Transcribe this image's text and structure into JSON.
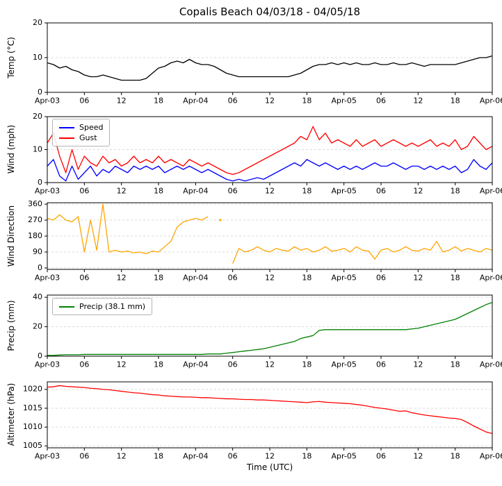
{
  "title": "Copalis Beach 04/03/18 - 04/05/18",
  "xlabel": "Time (UTC)",
  "x_ticks": {
    "hours": [
      0,
      6,
      12,
      18,
      24,
      30,
      36,
      42,
      48,
      54,
      60,
      66,
      72
    ],
    "labels": [
      "Apr-03",
      "06",
      "12",
      "18",
      "Apr-04",
      "06",
      "12",
      "18",
      "Apr-05",
      "06",
      "12",
      "18",
      "Apr-06"
    ]
  },
  "x_range": [
    0,
    72
  ],
  "x_step_hours": 1,
  "grid": {
    "on": true,
    "style": "dashed",
    "color": "#d0d0d0"
  },
  "chart_data": [
    {
      "id": "temperature",
      "type": "line",
      "ylabel": "Temp (°C)",
      "ylim": [
        0,
        20
      ],
      "yticks": [
        0,
        10,
        20
      ],
      "series": [
        {
          "name": "Temp",
          "color": "#000000",
          "values": [
            8.5,
            8,
            7,
            7.5,
            6.5,
            6,
            5,
            4.5,
            4.5,
            5,
            4.5,
            4,
            3.5,
            3.5,
            3.5,
            3.5,
            4,
            5.5,
            7,
            7.5,
            8.5,
            9,
            8.5,
            9.5,
            8.5,
            8,
            8,
            7.5,
            6.5,
            5.5,
            5,
            4.5,
            4.5,
            4.5,
            4.5,
            4.5,
            4.5,
            4.5,
            4.5,
            4.5,
            5,
            5.5,
            6.5,
            7.5,
            8,
            8,
            8.5,
            8,
            8.5,
            8,
            8.5,
            8,
            8,
            8.5,
            8,
            8,
            8.5,
            8,
            8,
            8.5,
            8,
            7.5,
            8,
            8,
            8,
            8,
            8,
            8.5,
            9,
            9.5,
            10,
            10,
            10.5
          ]
        }
      ]
    },
    {
      "id": "wind",
      "type": "line",
      "ylabel": "Wind (mph)",
      "ylim": [
        0,
        20
      ],
      "yticks": [
        0,
        10,
        20
      ],
      "legend": {
        "position": "upper left",
        "entries": [
          "Speed",
          "Gust"
        ]
      },
      "series": [
        {
          "name": "Speed",
          "color": "#0000ff",
          "values": [
            5,
            7,
            2,
            0.5,
            5,
            1,
            3,
            5,
            2,
            4,
            3,
            5,
            4,
            3,
            5,
            4,
            5,
            4,
            5,
            3,
            4,
            5,
            4,
            5,
            4,
            3,
            4,
            3,
            2,
            1,
            0.5,
            1,
            0.5,
            1,
            1.5,
            1,
            2,
            3,
            4,
            5,
            6,
            5,
            7,
            6,
            5,
            6,
            5,
            4,
            5,
            4,
            5,
            4,
            5,
            6,
            5,
            5,
            6,
            5,
            4,
            5,
            5,
            4,
            5,
            4,
            5,
            4,
            5,
            3,
            4,
            7,
            5,
            4,
            6
          ]
        },
        {
          "name": "Gust",
          "color": "#ff0000",
          "values": [
            12,
            15,
            8,
            3,
            10,
            4,
            8,
            6,
            5,
            8,
            6,
            7,
            5,
            6,
            8,
            6,
            7,
            6,
            8,
            6,
            7,
            6,
            5,
            7,
            6,
            5,
            6,
            5,
            4,
            3,
            2.5,
            3,
            4,
            5,
            6,
            7,
            8,
            9,
            10,
            11,
            12,
            14,
            13,
            17,
            13,
            15,
            12,
            13,
            12,
            11,
            13,
            11,
            12,
            13,
            11,
            12,
            13,
            12,
            11,
            12,
            11,
            12,
            13,
            11,
            12,
            11,
            13,
            10,
            11,
            14,
            12,
            10,
            11
          ]
        }
      ]
    },
    {
      "id": "wind-direction",
      "type": "line",
      "ylabel": "Wind Direction",
      "ylim": [
        -8,
        368
      ],
      "yticks": [
        0,
        90,
        180,
        270,
        360
      ],
      "series": [
        {
          "name": "Wind Direction",
          "color": "#ffa500",
          "values": [
            280,
            270,
            300,
            270,
            260,
            290,
            90,
            270,
            100,
            360,
            90,
            100,
            90,
            95,
            85,
            90,
            80,
            95,
            90,
            120,
            150,
            230,
            260,
            270,
            280,
            270,
            290,
            null,
            270,
            null,
            25,
            110,
            90,
            100,
            120,
            100,
            90,
            110,
            100,
            95,
            120,
            100,
            110,
            90,
            100,
            120,
            95,
            100,
            110,
            90,
            120,
            100,
            95,
            50,
            100,
            110,
            90,
            100,
            120,
            100,
            95,
            110,
            100,
            150,
            90,
            100,
            120,
            95,
            110,
            100,
            90,
            110,
            100
          ]
        }
      ]
    },
    {
      "id": "precip",
      "type": "line",
      "ylabel": "Precip (mm)",
      "ylim": [
        0,
        41.5
      ],
      "yticks": [
        0,
        20,
        40
      ],
      "legend": {
        "position": "upper left",
        "entries": [
          "Precip (38.1 mm)"
        ]
      },
      "series": [
        {
          "name": "Precip (38.1 mm)",
          "color": "#008000",
          "values": [
            0.5,
            0.5,
            0.8,
            1,
            1,
            1,
            1.2,
            1.2,
            1.2,
            1.2,
            1.2,
            1.2,
            1.2,
            1.2,
            1.2,
            1.2,
            1.2,
            1.2,
            1.2,
            1.2,
            1.2,
            1.2,
            1.2,
            1.2,
            1.2,
            1.2,
            1.5,
            1.5,
            1.5,
            2,
            2.5,
            3,
            3.5,
            4,
            4.5,
            5,
            6,
            7,
            8,
            9,
            10,
            12,
            13,
            14,
            17.5,
            18,
            18,
            18,
            18,
            18,
            18,
            18,
            18,
            18,
            18,
            18,
            18,
            18,
            18,
            18.5,
            19,
            20,
            21,
            22,
            23,
            24,
            25,
            27,
            29,
            31,
            33,
            35,
            36.5,
            38.1
          ]
        }
      ]
    },
    {
      "id": "altimeter",
      "type": "line",
      "ylabel": "Altimeter (hPa)",
      "ylim": [
        1004.5,
        1022
      ],
      "yticks": [
        1005,
        1010,
        1015,
        1020
      ],
      "series": [
        {
          "name": "Altimeter",
          "color": "#ff0000",
          "values": [
            1020.6,
            1020.7,
            1021,
            1020.8,
            1020.7,
            1020.6,
            1020.5,
            1020.3,
            1020.2,
            1020,
            1019.9,
            1019.7,
            1019.5,
            1019.3,
            1019.1,
            1019,
            1018.8,
            1018.6,
            1018.5,
            1018.3,
            1018.2,
            1018.1,
            1018,
            1018,
            1017.9,
            1017.8,
            1017.8,
            1017.7,
            1017.6,
            1017.5,
            1017.5,
            1017.4,
            1017.3,
            1017.3,
            1017.2,
            1017.2,
            1017.1,
            1017,
            1016.9,
            1016.8,
            1016.7,
            1016.6,
            1016.5,
            1016.7,
            1016.8,
            1016.6,
            1016.5,
            1016.4,
            1016.3,
            1016.2,
            1016,
            1015.8,
            1015.5,
            1015.2,
            1015,
            1014.8,
            1014.5,
            1014.2,
            1014.3,
            1013.8,
            1013.5,
            1013.2,
            1013,
            1012.8,
            1012.6,
            1012.4,
            1012.3,
            1012,
            1011.2,
            1010.3,
            1009.5,
            1008.7,
            1008.3
          ]
        }
      ]
    }
  ]
}
